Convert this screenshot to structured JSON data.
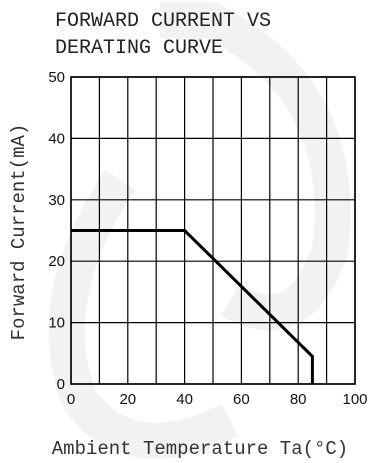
{
  "chart_data": {
    "type": "line",
    "title_lines": [
      "FORWARD CURRENT VS",
      "DERATING CURVE"
    ],
    "xlabel": "Ambient   Temperature   Ta(°C)",
    "ylabel": "Forward   Current(mA)",
    "xlim": [
      0,
      100
    ],
    "ylim": [
      0,
      50
    ],
    "x_ticks": [
      "0",
      "20",
      "40",
      "60",
      "80",
      "100"
    ],
    "y_ticks": [
      "0",
      "10",
      "20",
      "30",
      "40",
      "50"
    ],
    "grid": true,
    "series": [
      {
        "x": [
          0,
          40,
          85,
          85
        ],
        "y": [
          25,
          25,
          4.5,
          0
        ]
      }
    ]
  }
}
